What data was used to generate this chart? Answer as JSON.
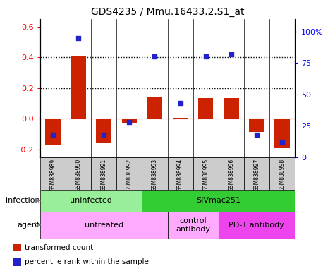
{
  "title": "GDS4235 / Mmu.16433.2.S1_at",
  "samples": [
    "GSM838989",
    "GSM838990",
    "GSM838991",
    "GSM838992",
    "GSM838993",
    "GSM838994",
    "GSM838995",
    "GSM838996",
    "GSM838997",
    "GSM838998"
  ],
  "transformed_count": [
    -0.17,
    0.405,
    -0.155,
    -0.025,
    0.14,
    0.005,
    0.135,
    0.135,
    -0.085,
    -0.19
  ],
  "percentile_rank": [
    18,
    95,
    18,
    28,
    80,
    43,
    80,
    82,
    18,
    12
  ],
  "ylim_left": [
    -0.25,
    0.65
  ],
  "ylim_right": [
    0,
    110
  ],
  "yticks_left": [
    -0.2,
    0.0,
    0.2,
    0.4,
    0.6
  ],
  "yticks_right": [
    0,
    25,
    50,
    75,
    100
  ],
  "yticklabels_right": [
    "0",
    "25",
    "50",
    "75",
    "100%"
  ],
  "dotted_lines": [
    0.4,
    0.2
  ],
  "bar_color": "#cc2200",
  "dot_color": "#2222cc",
  "infection_groups": [
    {
      "label": "uninfected",
      "start": 0,
      "end": 4,
      "color": "#99ee99"
    },
    {
      "label": "SIVmac251",
      "start": 4,
      "end": 10,
      "color": "#33cc33"
    }
  ],
  "agent_groups": [
    {
      "label": "untreated",
      "start": 0,
      "end": 5,
      "color": "#ffaaff"
    },
    {
      "label": "control\nantibody",
      "start": 5,
      "end": 7,
      "color": "#ffaaff"
    },
    {
      "label": "PD-1 antibody",
      "start": 7,
      "end": 10,
      "color": "#ee44ee"
    }
  ],
  "legend_items": [
    {
      "label": "transformed count",
      "color": "#cc2200"
    },
    {
      "label": "percentile rank within the sample",
      "color": "#2222cc"
    }
  ],
  "sample_box_color": "#cccccc"
}
